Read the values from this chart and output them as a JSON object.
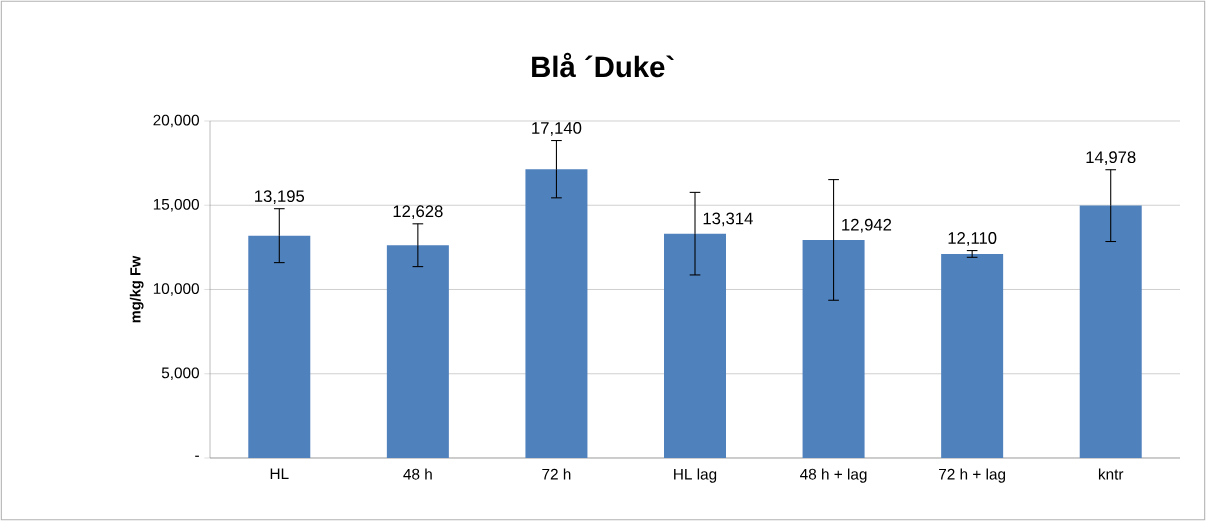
{
  "chart_data": {
    "type": "bar",
    "title": "Blå ´Duke`",
    "ylabel": "mg/kg Fw",
    "categories": [
      "HL",
      "48 h",
      "72 h",
      "HL lag",
      "48 h + lag",
      "72 h + lag",
      "kntr"
    ],
    "values": [
      13195,
      12628,
      17140,
      13314,
      12942,
      12110,
      14978
    ],
    "value_labels": [
      "13,195",
      "12,628",
      "17,140",
      "13,314",
      "12,942",
      "12,110",
      "14,978"
    ],
    "errors": [
      1600,
      1270,
      1700,
      2450,
      3580,
      200,
      2130
    ],
    "color": "#4f81bd",
    "ylim": [
      0,
      20000
    ],
    "yticks": [
      {
        "value": 0,
        "label": "-"
      },
      {
        "value": 5000,
        "label": "5,000"
      },
      {
        "value": 10000,
        "label": "10,000"
      },
      {
        "value": 15000,
        "label": "15,000"
      },
      {
        "value": 20000,
        "label": "20,000"
      }
    ],
    "grid": "y"
  }
}
